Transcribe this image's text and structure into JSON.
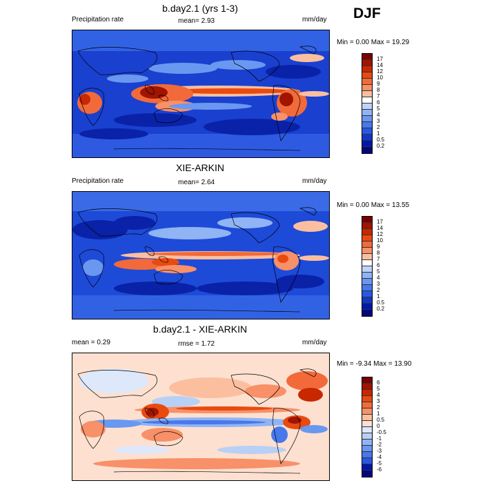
{
  "season": "DJF",
  "panels": [
    {
      "title": "b.day2.1 (yrs 1-3)",
      "left_label": "Precipitation rate",
      "mean_label": "mean=  2.93",
      "units": "mm/day",
      "minmax": "Min =  0.00 Max =  19.29",
      "colorbar": {
        "labels": [
          "17",
          "14",
          "12",
          "10",
          "9",
          "8",
          "7",
          "6",
          "5",
          "4",
          "3",
          "2",
          "1",
          "0.5",
          "0.2"
        ],
        "colors": [
          "#7a0000",
          "#a01400",
          "#c82800",
          "#e84a10",
          "#f26a3a",
          "#f89068",
          "#fbbfa0",
          "#ffffff",
          "#c0d4f8",
          "#90b4f4",
          "#6898f0",
          "#4878ec",
          "#2858e0",
          "#1038c8",
          "#0018a8",
          "#00087a"
        ]
      }
    },
    {
      "title": "XIE-ARKIN",
      "left_label": "Precipitation rate",
      "mean_label": "mean=  2.64",
      "units": "mm/day",
      "minmax": "Min =  0.00 Max =  13.55",
      "colorbar": {
        "labels": [
          "17",
          "14",
          "12",
          "10",
          "9",
          "8",
          "7",
          "6",
          "5",
          "4",
          "3",
          "2",
          "1",
          "0.5",
          "0.2"
        ],
        "colors": [
          "#7a0000",
          "#a01400",
          "#c82800",
          "#e84a10",
          "#f26a3a",
          "#f89068",
          "#fbbfa0",
          "#ffffff",
          "#c0d4f8",
          "#90b4f4",
          "#6898f0",
          "#4878ec",
          "#2858e0",
          "#1038c8",
          "#0018a8",
          "#00087a"
        ]
      }
    },
    {
      "title": "b.day2.1 - XIE-ARKIN",
      "left_label": "mean =   0.29",
      "mean_label": "rmse =   1.72",
      "units": "mm/day",
      "minmax": "Min =  -9.34 Max =  13.90",
      "colorbar": {
        "labels": [
          "6",
          "5",
          "4",
          "3",
          "2",
          "1",
          "0.5",
          "0",
          "-0.5",
          "-1",
          "-2",
          "-3",
          "-4",
          "-5",
          "-6"
        ],
        "colors": [
          "#7a0000",
          "#a01400",
          "#c82800",
          "#e84a10",
          "#f26a3a",
          "#f89068",
          "#fbbfa0",
          "#fde0d0",
          "#dde8fb",
          "#b8d0f6",
          "#90b4f4",
          "#6898f0",
          "#4878ec",
          "#2858e0",
          "#0018a8",
          "#00087a"
        ]
      }
    }
  ]
}
